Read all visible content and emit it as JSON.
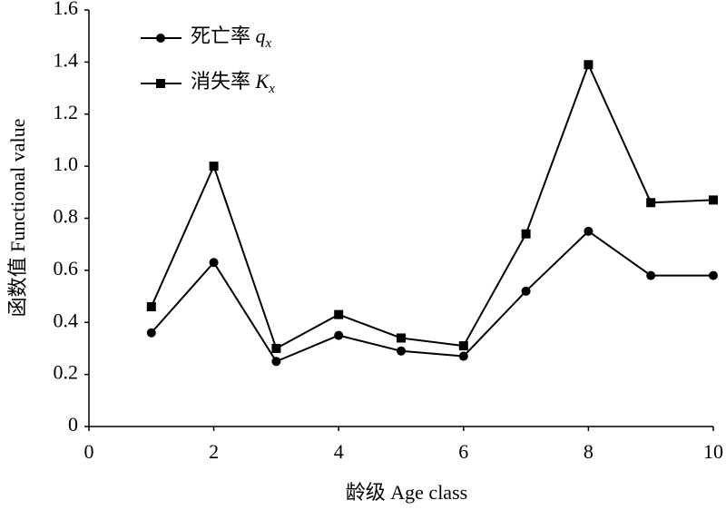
{
  "chart_data": {
    "type": "line",
    "xlabel": "龄级 Age class",
    "ylabel": "函数值 Functional value",
    "x": [
      1,
      2,
      3,
      4,
      5,
      6,
      7,
      8,
      9,
      10
    ],
    "series": [
      {
        "name": "死亡率 qx",
        "color": "#000000",
        "marker": "circle",
        "values": [
          0.36,
          0.63,
          0.25,
          0.35,
          0.29,
          0.27,
          0.52,
          0.75,
          0.58,
          0.58
        ]
      },
      {
        "name": "消失率 Kx",
        "color": "#000000",
        "marker": "square",
        "values": [
          0.46,
          1.0,
          0.3,
          0.43,
          0.34,
          0.31,
          0.74,
          1.39,
          0.86,
          0.87
        ]
      }
    ],
    "xlim": [
      0,
      10
    ],
    "xticks": [
      0,
      2,
      4,
      6,
      8,
      10
    ],
    "ylim": [
      0,
      1.6
    ],
    "yticks": [
      0,
      0.2,
      0.4,
      0.6,
      0.8,
      {
        "value": 1,
        "label": "1.0"
      },
      1.2,
      1.4,
      1.6
    ],
    "grid": false,
    "legend": "upper left"
  }
}
